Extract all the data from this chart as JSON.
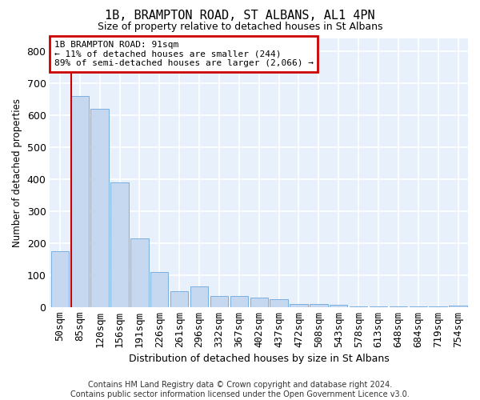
{
  "title": "1B, BRAMPTON ROAD, ST ALBANS, AL1 4PN",
  "subtitle": "Size of property relative to detached houses in St Albans",
  "xlabel": "Distribution of detached houses by size in St Albans",
  "ylabel": "Number of detached properties",
  "bar_color": "#c5d8f0",
  "bar_edge_color": "#7aafe0",
  "background_color": "#e8f0fb",
  "grid_color": "#ffffff",
  "annotation_text": "1B BRAMPTON ROAD: 91sqm\n← 11% of detached houses are smaller (244)\n89% of semi-detached houses are larger (2,066) →",
  "annotation_box_color": "#ffffff",
  "annotation_box_edge_color": "#cc0000",
  "vline_color": "#cc0000",
  "vline_x_index": 1,
  "categories": [
    "50sqm",
    "85sqm",
    "120sqm",
    "156sqm",
    "191sqm",
    "226sqm",
    "261sqm",
    "296sqm",
    "332sqm",
    "367sqm",
    "402sqm",
    "437sqm",
    "472sqm",
    "508sqm",
    "543sqm",
    "578sqm",
    "613sqm",
    "648sqm",
    "684sqm",
    "719sqm",
    "754sqm"
  ],
  "values": [
    175,
    660,
    620,
    390,
    215,
    110,
    50,
    65,
    35,
    35,
    30,
    25,
    10,
    10,
    8,
    2,
    2,
    2,
    2,
    2,
    5
  ],
  "ylim": [
    0,
    840
  ],
  "yticks": [
    0,
    100,
    200,
    300,
    400,
    500,
    600,
    700,
    800
  ],
  "footer": "Contains HM Land Registry data © Crown copyright and database right 2024.\nContains public sector information licensed under the Open Government Licence v3.0."
}
